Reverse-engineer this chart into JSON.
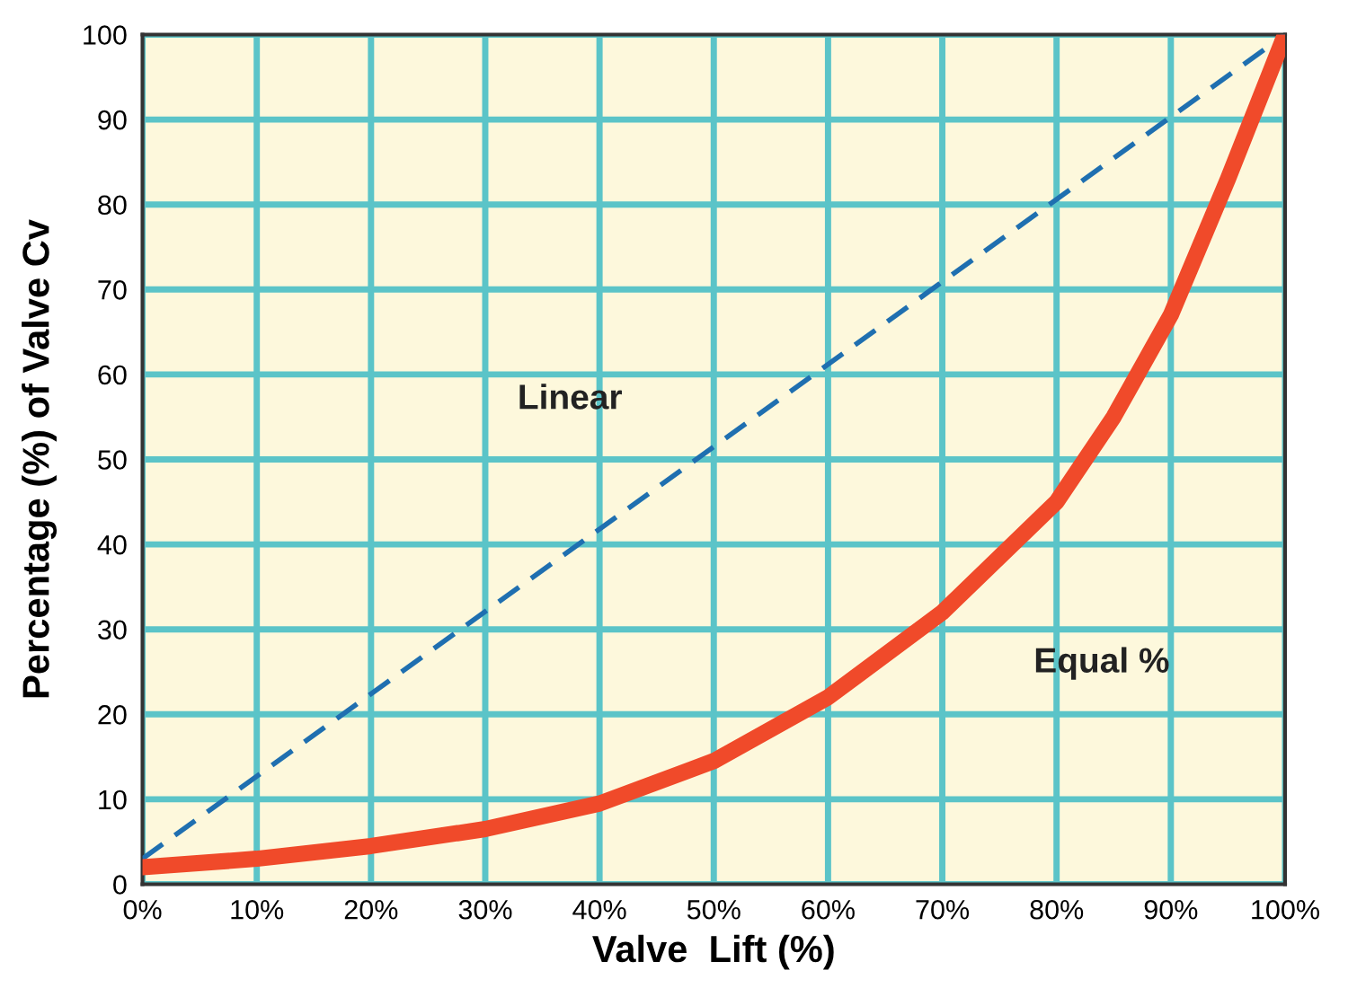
{
  "chart_data": {
    "type": "line",
    "xlabel": "Valve  Lift (%)",
    "ylabel": "Percentage (%) of Valve Cv",
    "x": [
      0,
      10,
      20,
      30,
      40,
      50,
      60,
      70,
      80,
      85,
      90,
      95,
      100
    ],
    "series": [
      {
        "name": "Linear",
        "color": "#1f6fb0",
        "line_style": "dashed",
        "x": [
          0,
          100
        ],
        "values": [
          3,
          100
        ]
      },
      {
        "name": "Equal %",
        "color": "#f04a2a",
        "line_style": "solid",
        "values": [
          2,
          3,
          4.5,
          6.5,
          9.5,
          14.5,
          22,
          32,
          45,
          55,
          67,
          83,
          100
        ]
      }
    ],
    "xlim": [
      0,
      100
    ],
    "ylim": [
      0,
      100
    ],
    "xticks": [
      {
        "value": 0,
        "label": "0%"
      },
      {
        "value": 10,
        "label": "10%"
      },
      {
        "value": 20,
        "label": "20%"
      },
      {
        "value": 30,
        "label": "30%"
      },
      {
        "value": 40,
        "label": "40%"
      },
      {
        "value": 50,
        "label": "50%"
      },
      {
        "value": 60,
        "label": "60%"
      },
      {
        "value": 70,
        "label": "70%"
      },
      {
        "value": 80,
        "label": "80%"
      },
      {
        "value": 90,
        "label": "90%"
      },
      {
        "value": 100,
        "label": "100%"
      }
    ],
    "yticks": [
      0,
      10,
      20,
      30,
      40,
      50,
      60,
      70,
      80,
      90,
      100
    ],
    "grid": true,
    "legend": false,
    "marker": "none"
  }
}
